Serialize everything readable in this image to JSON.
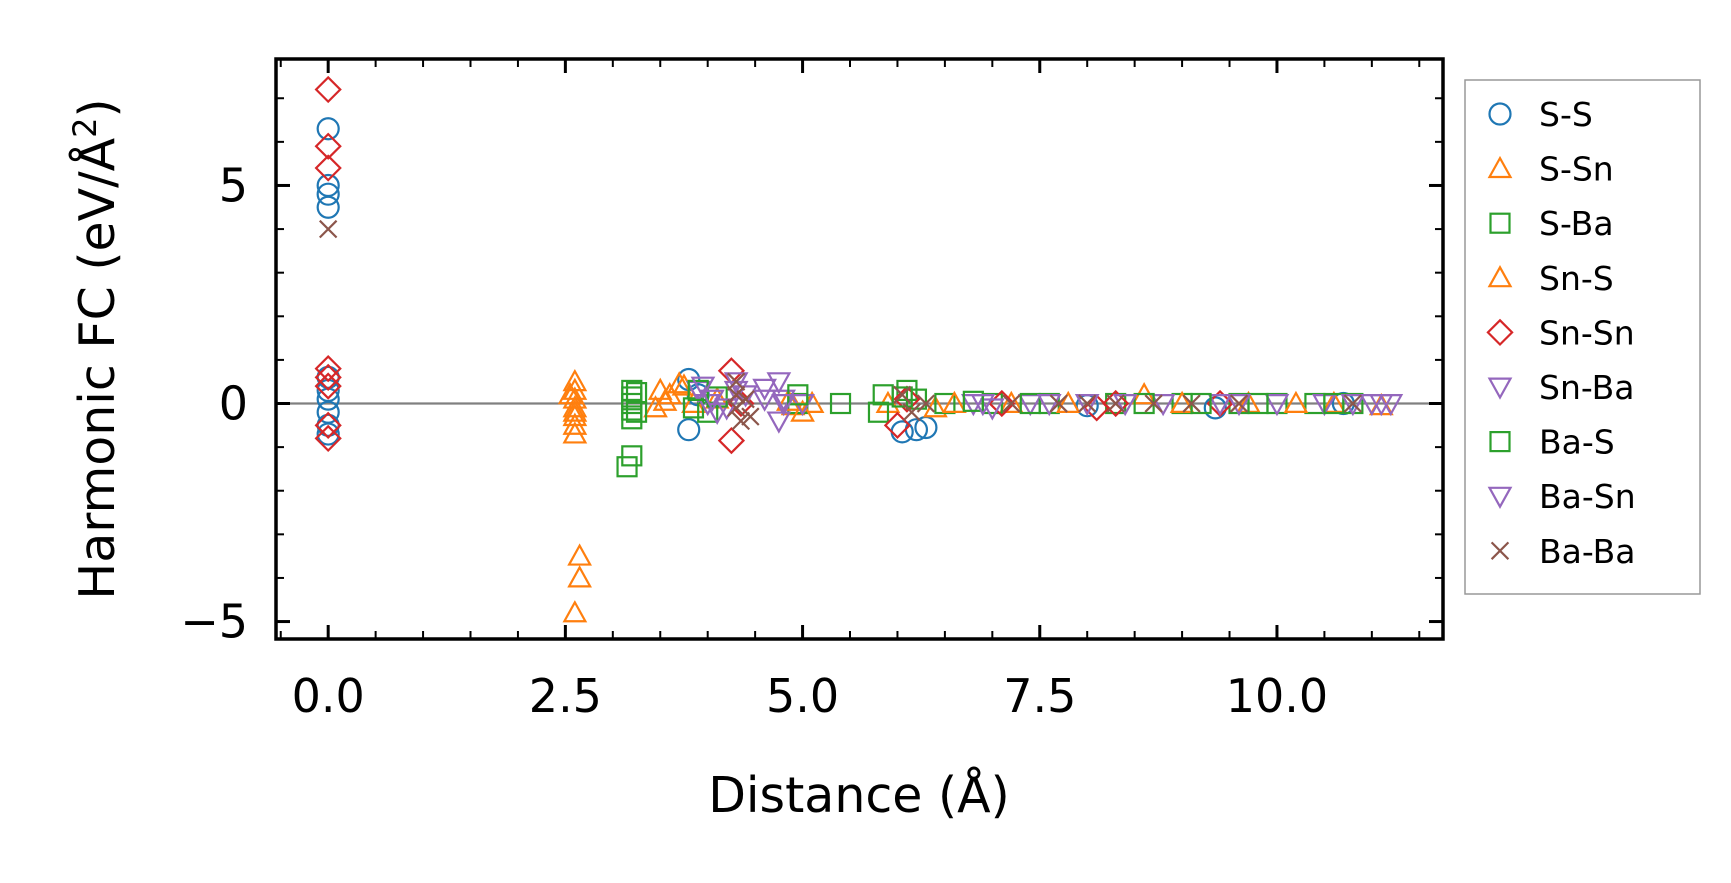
{
  "chart_data": {
    "type": "scatter",
    "title": "",
    "xlabel": "Distance (Å)",
    "ylabel_main": "Harmonic FC (eV/Å",
    "ylabel_sup": "2",
    "ylabel_end": ")",
    "xlim": [
      -0.55,
      11.75
    ],
    "ylim": [
      -5.4,
      7.9
    ],
    "x_ticks": [
      0.0,
      2.5,
      5.0,
      7.5,
      10.0
    ],
    "x_tick_labels": [
      "0.0",
      "2.5",
      "5.0",
      "7.5",
      "10.0"
    ],
    "y_ticks": [
      -5,
      0,
      5
    ],
    "y_tick_labels": [
      "−5",
      "0",
      "5"
    ],
    "zero_line": true,
    "grid": false,
    "legend_position": "outside-right",
    "series": [
      {
        "name": "S-S",
        "marker": "circle",
        "color": "#1f77b4",
        "points": [
          [
            0,
            6.3
          ],
          [
            0,
            5.0
          ],
          [
            0,
            4.8
          ],
          [
            0,
            4.5
          ],
          [
            0,
            0.6
          ],
          [
            0,
            0.3
          ],
          [
            0,
            0.1
          ],
          [
            0,
            -0.2
          ],
          [
            0,
            -0.5
          ],
          [
            0,
            -0.7
          ],
          [
            3.8,
            0.55
          ],
          [
            3.8,
            -0.6
          ],
          [
            3.9,
            0.2
          ],
          [
            6.05,
            -0.65
          ],
          [
            6.2,
            -0.6
          ],
          [
            6.3,
            -0.55
          ],
          [
            8.0,
            -0.05
          ],
          [
            9.35,
            -0.1
          ],
          [
            10.7,
            0.0
          ]
        ]
      },
      {
        "name": "S-Sn",
        "marker": "triangle-up",
        "color": "#ff7f0e",
        "points": [
          [
            2.6,
            0.5
          ],
          [
            2.6,
            0.3
          ],
          [
            2.6,
            0.1
          ],
          [
            2.6,
            -0.1
          ],
          [
            2.6,
            -0.3
          ],
          [
            2.6,
            -0.5
          ],
          [
            2.6,
            -0.7
          ],
          [
            2.65,
            -3.5
          ],
          [
            2.65,
            -4.0
          ],
          [
            2.6,
            -4.8
          ],
          [
            3.5,
            0.3
          ],
          [
            3.6,
            0.2
          ],
          [
            3.7,
            0.45
          ],
          [
            3.85,
            0.0
          ],
          [
            4.1,
            0.1
          ],
          [
            4.9,
            -0.05
          ],
          [
            5.1,
            0.0
          ],
          [
            5.9,
            0.0
          ],
          [
            6.4,
            -0.1
          ],
          [
            7.2,
            0.0
          ],
          [
            8.6,
            0.2
          ],
          [
            9.7,
            0.0
          ],
          [
            10.6,
            0.0
          ],
          [
            11.1,
            -0.05
          ]
        ]
      },
      {
        "name": "S-Ba",
        "marker": "square",
        "color": "#2ca02c",
        "points": [
          [
            3.2,
            0.3
          ],
          [
            3.2,
            0.15
          ],
          [
            3.2,
            0.0
          ],
          [
            3.2,
            -0.15
          ],
          [
            3.2,
            -0.35
          ],
          [
            3.2,
            -1.2
          ],
          [
            3.15,
            -1.45
          ],
          [
            3.85,
            -0.1
          ],
          [
            4.0,
            -0.2
          ],
          [
            4.95,
            0.0
          ],
          [
            5.4,
            0.0
          ],
          [
            5.8,
            -0.2
          ],
          [
            6.1,
            0.3
          ],
          [
            6.2,
            0.1
          ],
          [
            6.5,
            0.0
          ],
          [
            7.0,
            0.0
          ],
          [
            7.6,
            0.0
          ],
          [
            8.3,
            0.0
          ],
          [
            9.0,
            0.0
          ],
          [
            9.6,
            0.0
          ],
          [
            10.0,
            0.0
          ],
          [
            10.4,
            0.0
          ],
          [
            10.8,
            0.0
          ]
        ]
      },
      {
        "name": "Sn-S",
        "marker": "triangle-up",
        "color": "#ff7f0e",
        "points": [
          [
            2.55,
            0.2
          ],
          [
            2.6,
            -0.2
          ],
          [
            3.45,
            -0.1
          ],
          [
            3.55,
            0.05
          ],
          [
            3.75,
            0.4
          ],
          [
            4.85,
            0.05
          ],
          [
            5.0,
            -0.2
          ],
          [
            6.6,
            0.0
          ],
          [
            7.8,
            0.0
          ],
          [
            9.0,
            0.0
          ],
          [
            10.2,
            0.0
          ]
        ]
      },
      {
        "name": "Sn-Sn",
        "marker": "diamond",
        "color": "#d62728",
        "points": [
          [
            0,
            7.2
          ],
          [
            0,
            5.9
          ],
          [
            0,
            5.4
          ],
          [
            0,
            0.8
          ],
          [
            0,
            0.6
          ],
          [
            0,
            0.4
          ],
          [
            0,
            -0.5
          ],
          [
            0,
            -0.8
          ],
          [
            4.25,
            0.75
          ],
          [
            4.25,
            -0.85
          ],
          [
            4.35,
            0.0
          ],
          [
            6.0,
            -0.5
          ],
          [
            6.1,
            0.1
          ],
          [
            7.1,
            0.0
          ],
          [
            8.1,
            -0.1
          ],
          [
            8.3,
            0.0
          ],
          [
            9.4,
            0.0
          ]
        ]
      },
      {
        "name": "Sn-Ba",
        "marker": "triangle-down",
        "color": "#9467bd",
        "points": [
          [
            3.9,
            0.3
          ],
          [
            4.0,
            0.0
          ],
          [
            4.1,
            -0.2
          ],
          [
            4.3,
            0.5
          ],
          [
            4.4,
            0.2
          ],
          [
            4.6,
            0.35
          ],
          [
            4.75,
            0.5
          ],
          [
            4.75,
            -0.4
          ],
          [
            4.8,
            0.1
          ],
          [
            5.0,
            0.0
          ],
          [
            6.8,
            0.0
          ],
          [
            7.0,
            -0.1
          ],
          [
            7.4,
            0.0
          ],
          [
            8.0,
            0.0
          ],
          [
            8.8,
            0.0
          ],
          [
            9.4,
            0.0
          ],
          [
            10.0,
            0.0
          ],
          [
            10.5,
            0.0
          ],
          [
            11.0,
            0.0
          ],
          [
            11.2,
            0.0
          ]
        ]
      },
      {
        "name": "Ba-S",
        "marker": "square",
        "color": "#2ca02c",
        "points": [
          [
            3.25,
            0.25
          ],
          [
            3.25,
            -0.2
          ],
          [
            3.9,
            0.3
          ],
          [
            4.1,
            0.15
          ],
          [
            4.95,
            0.2
          ],
          [
            5.85,
            0.2
          ],
          [
            6.05,
            0.15
          ],
          [
            6.8,
            0.05
          ],
          [
            7.4,
            0.0
          ],
          [
            8.6,
            0.0
          ],
          [
            9.2,
            0.0
          ],
          [
            9.8,
            0.0
          ],
          [
            10.6,
            0.0
          ]
        ]
      },
      {
        "name": "Ba-Sn",
        "marker": "triangle-down",
        "color": "#9467bd",
        "points": [
          [
            3.95,
            0.4
          ],
          [
            4.05,
            0.1
          ],
          [
            4.2,
            -0.1
          ],
          [
            4.3,
            0.3
          ],
          [
            4.6,
            0.1
          ],
          [
            4.8,
            0.0
          ],
          [
            6.9,
            0.0
          ],
          [
            7.6,
            0.0
          ],
          [
            8.4,
            0.0
          ],
          [
            9.6,
            0.0
          ],
          [
            10.8,
            0.0
          ],
          [
            11.1,
            0.0
          ]
        ]
      },
      {
        "name": "Ba-Ba",
        "marker": "x",
        "color": "#8c564b",
        "points": [
          [
            0,
            4.0
          ],
          [
            4.3,
            0.5
          ],
          [
            4.3,
            0.2
          ],
          [
            4.3,
            -0.1
          ],
          [
            4.35,
            -0.4
          ],
          [
            4.4,
            0.1
          ],
          [
            4.45,
            -0.3
          ],
          [
            6.05,
            0.2
          ],
          [
            6.15,
            -0.2
          ],
          [
            6.3,
            0.0
          ],
          [
            7.2,
            0.0
          ],
          [
            7.7,
            0.0
          ],
          [
            8.0,
            0.0
          ],
          [
            8.3,
            0.0
          ],
          [
            8.7,
            0.0
          ],
          [
            9.1,
            0.0
          ],
          [
            9.6,
            0.0
          ],
          [
            10.8,
            0.0
          ]
        ]
      }
    ]
  }
}
